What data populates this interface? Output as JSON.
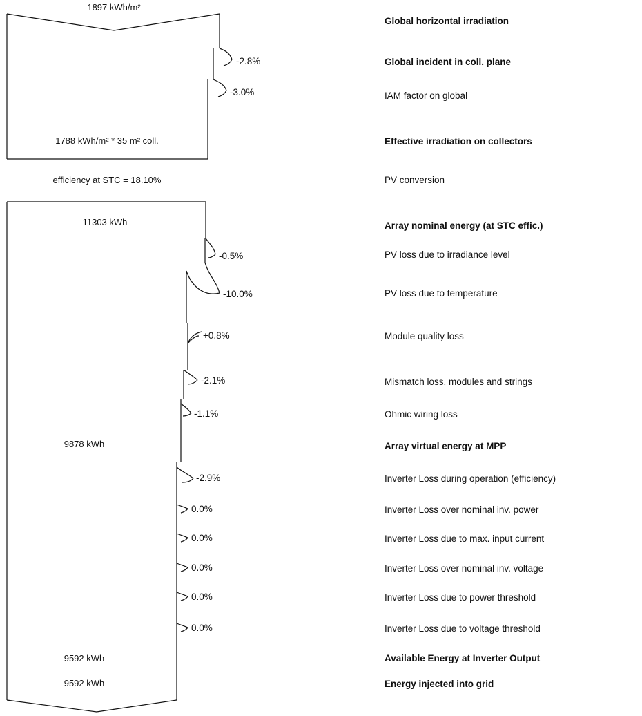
{
  "top_box": {
    "global_value": "1897 kWh/m²",
    "effective_value": "1788 kWh/m² * 35 m² coll."
  },
  "efficiency_label": "efficiency at STC = 18.10%",
  "bottom_box": {
    "nominal_value": "11303 kWh",
    "mpp_value": "9878 kWh",
    "available_value": "9592 kWh",
    "injected_value": "9592 kWh"
  },
  "steps": [
    {
      "label": "Global horizontal irradiation",
      "bold": true,
      "percent": ""
    },
    {
      "label": "Global incident in coll. plane",
      "bold": true,
      "percent": "-2.8%"
    },
    {
      "label": "IAM factor on global",
      "bold": false,
      "percent": "-3.0%"
    },
    {
      "label": "Effective irradiation on collectors",
      "bold": true,
      "percent": ""
    },
    {
      "label": "PV conversion",
      "bold": false,
      "percent": ""
    },
    {
      "label": "Array nominal energy (at STC effic.)",
      "bold": true,
      "percent": ""
    },
    {
      "label": "PV loss due to irradiance level",
      "bold": false,
      "percent": "-0.5%"
    },
    {
      "label": "PV loss due to temperature",
      "bold": false,
      "percent": "-10.0%"
    },
    {
      "label": "Module quality loss",
      "bold": false,
      "percent": "+0.8%"
    },
    {
      "label": "Mismatch loss, modules and strings",
      "bold": false,
      "percent": "-2.1%"
    },
    {
      "label": "Ohmic wiring loss",
      "bold": false,
      "percent": "-1.1%"
    },
    {
      "label": "Array virtual energy at MPP",
      "bold": true,
      "percent": ""
    },
    {
      "label": "Inverter Loss during operation (efficiency)",
      "bold": false,
      "percent": "-2.9%"
    },
    {
      "label": "Inverter Loss over nominal inv. power",
      "bold": false,
      "percent": "0.0%"
    },
    {
      "label": "Inverter Loss due to max. input current",
      "bold": false,
      "percent": "0.0%"
    },
    {
      "label": "Inverter Loss over nominal inv. voltage",
      "bold": false,
      "percent": "0.0%"
    },
    {
      "label": "Inverter Loss due to power threshold",
      "bold": false,
      "percent": "0.0%"
    },
    {
      "label": "Inverter Loss due to voltage threshold",
      "bold": false,
      "percent": "0.0%"
    },
    {
      "label": "Available Energy at Inverter Output",
      "bold": true,
      "percent": ""
    },
    {
      "label": "Energy injected into grid",
      "bold": true,
      "percent": ""
    }
  ]
}
